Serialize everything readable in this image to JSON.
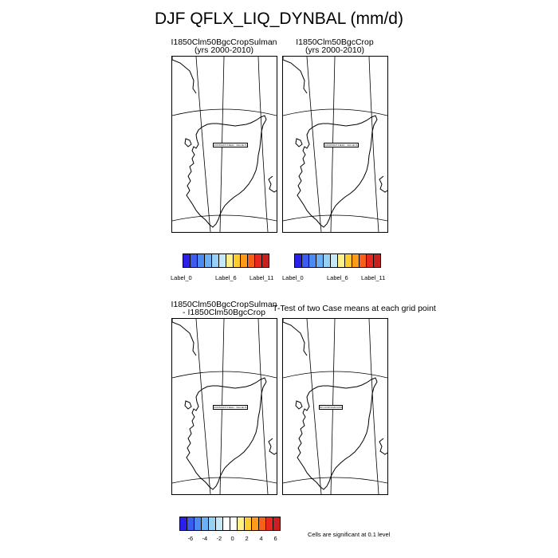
{
  "chart_data": [
    {
      "type": "heatmap",
      "title": "I1850Clm50BgcCropSulman",
      "subtitle": "(yrs 2000-2010)",
      "center_label": "CONSTANT FIELD - VALUE IS 0",
      "colorbar_labels": [
        "Label_0",
        "Label_6",
        "Label_11"
      ],
      "values": [
        [
          0
        ]
      ]
    },
    {
      "type": "heatmap",
      "title": "I1850Clm50BgcCrop",
      "subtitle": "(yrs 2000-2010)",
      "center_label": "CONSTANT FIELD - VALUE IS 0",
      "colorbar_labels": [
        "Label_0",
        "Label_6",
        "Label_11"
      ],
      "values": [
        [
          0
        ]
      ]
    },
    {
      "type": "heatmap",
      "title": "I1850Clm50BgcCropSulman",
      "subtitle": "- I1850Clm50BgcCrop",
      "center_label": "CONSTANT FIELD - VALUE IS 0",
      "values": [
        [
          0
        ]
      ]
    },
    {
      "type": "heatmap",
      "title": "T-Test of two Case means at each grid point",
      "center_label": "NO CONTOUR DATA",
      "values": [
        [
          0
        ]
      ]
    }
  ],
  "figure": {
    "title": "DJF QFLX_LIQ_DYNBAL (mm/d)",
    "diff_colorbar_ticks": [
      "-6",
      "-4",
      "-2",
      "0",
      "2",
      "4",
      "6"
    ],
    "significance_note": "Cells are significant at 0.1 level"
  },
  "colors": {
    "top_colorbar": [
      "#2b1fe8",
      "#3c5cf0",
      "#4a8af2",
      "#6cb0f4",
      "#96d0f4",
      "#c6e8f6",
      "#fff08a",
      "#ffcc30",
      "#ff9a1a",
      "#f8601a",
      "#e8281e",
      "#c8201e"
    ],
    "diff_colorbar": [
      "#2b1fe8",
      "#3c5cf0",
      "#4a8af2",
      "#6cb0f4",
      "#96d0f4",
      "#c6e8f6",
      "#ffffff",
      "#ffffff",
      "#fff08a",
      "#ffcc30",
      "#ff9a1a",
      "#f8601a",
      "#e8281e",
      "#c8201e"
    ]
  }
}
